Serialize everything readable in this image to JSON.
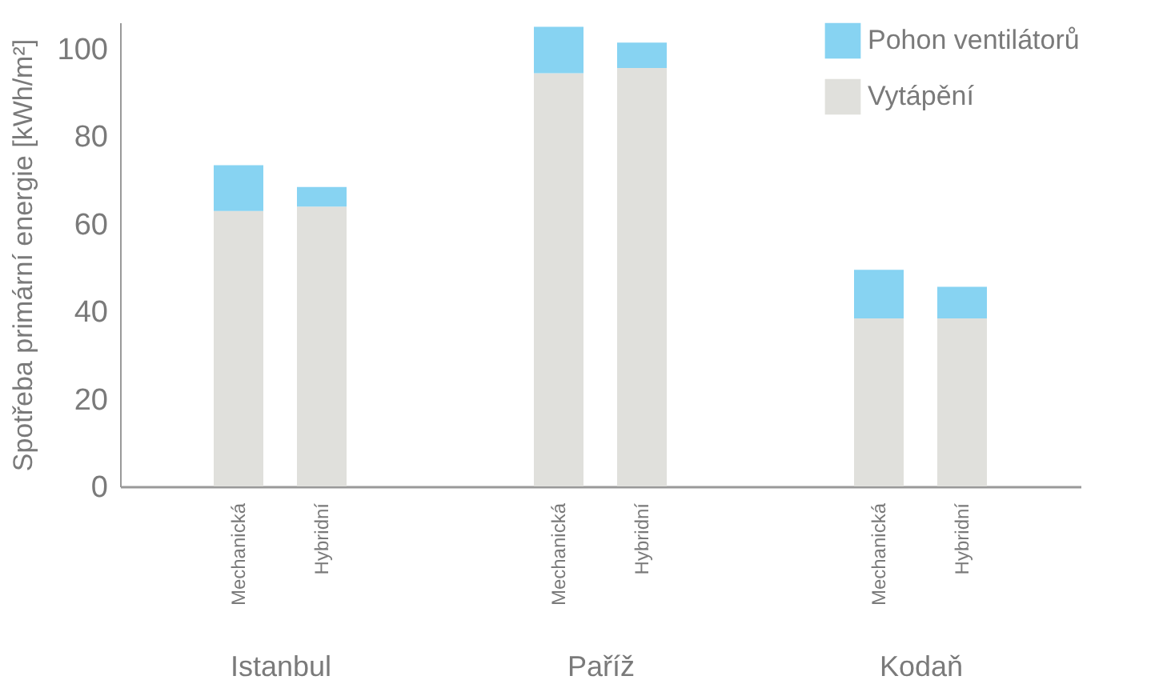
{
  "chart_data": [
    {
      "type": "bar",
      "stacked": true,
      "xlabel": "Istanbul",
      "ylabel": "Spotřeba primární energie [kWh/m²]",
      "categories": [
        "Mechanická",
        "Hybridní"
      ],
      "series": [
        {
          "color": "#e0e0dc",
          "values": [
            62.9,
            63.9
          ]
        },
        {
          "color": "#87d3f2",
          "values": [
            10.5,
            4.5
          ]
        }
      ],
      "ylim": [
        0,
        106
      ],
      "yticks": [
        0,
        20,
        40,
        60,
        80,
        100
      ],
      "grid": false
    },
    {
      "type": "bar",
      "stacked": true,
      "xlabel": "Paříž",
      "categories": [
        "Mechanická",
        "Hybridní"
      ],
      "series": [
        {
          "color": "#e0e0dc",
          "values": [
            94.4,
            95.6
          ]
        },
        {
          "color": "#87d3f2",
          "values": [
            10.6,
            5.8
          ]
        }
      ],
      "ylim": [
        0,
        106
      ],
      "tick_labels": "x"
    },
    {
      "type": "bar",
      "stacked": true,
      "xlabel": "Kodaň",
      "categories": [
        "Mechanická",
        "Hybridní"
      ],
      "series": [
        {
          "name": "Vytápění",
          "color": "#e0e0dc",
          "values": [
            38.4,
            38.4
          ]
        },
        {
          "name": "Pohon ventilátorů",
          "color": "#87d3f2",
          "values": [
            11.1,
            7.2
          ]
        }
      ],
      "ylim": [
        0,
        106
      ],
      "tick_labels": "x",
      "legend": "top right"
    }
  ]
}
